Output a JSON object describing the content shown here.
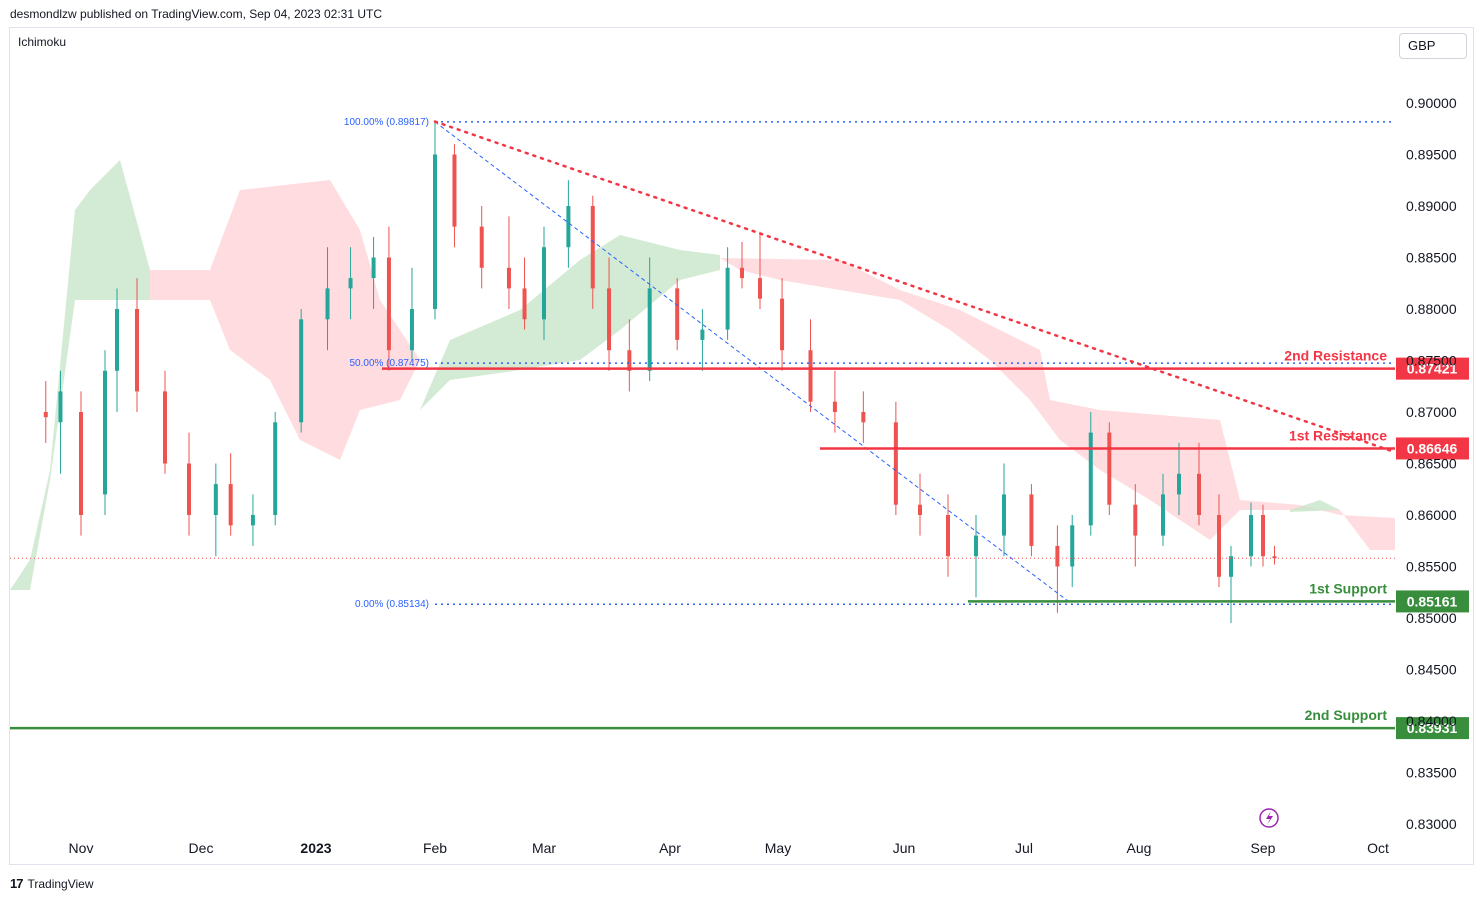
{
  "header": {
    "publisher": "desmondlzw published on TradingView.com, Sep 04, 2023 02:31 UTC"
  },
  "indicator_label": "Ichimoku",
  "currency": "GBP",
  "footer": {
    "brand": "TradingView",
    "logo": "17"
  },
  "icons": {
    "lightning": "lightning-icon"
  },
  "colors": {
    "up": "#26a69a",
    "down": "#ef5350",
    "resistance": "#f23645",
    "support": "#388e3c",
    "fib": "#2962ff",
    "cloud_bull": "#c8e6c9",
    "cloud_bear": "#ffcdd2",
    "trendline": "#f23645"
  },
  "chart_data": {
    "type": "candlestick",
    "instrument_currency": "GBP",
    "ylim": [
      0.828,
      0.904
    ],
    "y_ticks": [
      "0.90000",
      "0.89500",
      "0.89000",
      "0.88500",
      "0.88000",
      "0.87500",
      "0.87000",
      "0.86500",
      "0.86000",
      "0.85500",
      "0.85000",
      "0.84500",
      "0.84000",
      "0.83500",
      "0.83000"
    ],
    "x_ticks": [
      "Nov",
      "Dec",
      "2023",
      "Feb",
      "Mar",
      "Apr",
      "May",
      "Jun",
      "Jul",
      "Aug",
      "Sep",
      "Oct"
    ],
    "fibonacci": [
      {
        "label": "100.00% (0.89817)",
        "value": 0.89817
      },
      {
        "label": "50.00% (0.87475)",
        "value": 0.87475
      },
      {
        "label": "0.00% (0.85134)",
        "value": 0.85134
      }
    ],
    "levels": [
      {
        "name": "2nd Resistance",
        "value": 0.87421,
        "price_label": "0.87421",
        "kind": "resistance"
      },
      {
        "name": "1st Resistance",
        "value": 0.86646,
        "price_label": "0.86646",
        "kind": "resistance"
      },
      {
        "name": "1st Support",
        "value": 0.85161,
        "price_label": "0.85161",
        "kind": "support"
      },
      {
        "name": "2nd Support",
        "value": 0.83931,
        "price_label": "0.83931",
        "kind": "support"
      }
    ],
    "descending_trendline": {
      "from": [
        "2023-02-01",
        0.8982
      ],
      "to": [
        "2023-09-04",
        0.8661
      ]
    },
    "last_price": 0.8558,
    "candles": [
      [
        "2022-10-20",
        0.87,
        0.873,
        0.867,
        0.8695
      ],
      [
        "2022-10-25",
        0.869,
        0.874,
        0.864,
        0.872
      ],
      [
        "2022-11-01",
        0.87,
        0.872,
        0.858,
        0.86
      ],
      [
        "2022-11-07",
        0.862,
        0.876,
        0.86,
        0.874
      ],
      [
        "2022-11-10",
        0.874,
        0.882,
        0.87,
        0.88
      ],
      [
        "2022-11-15",
        0.88,
        0.883,
        0.87,
        0.872
      ],
      [
        "2022-11-22",
        0.872,
        0.874,
        0.864,
        0.865
      ],
      [
        "2022-11-28",
        0.865,
        0.868,
        0.858,
        0.86
      ],
      [
        "2022-12-05",
        0.86,
        0.865,
        0.856,
        0.863
      ],
      [
        "2022-12-09",
        0.863,
        0.866,
        0.858,
        0.859
      ],
      [
        "2022-12-15",
        0.859,
        0.862,
        0.857,
        0.86
      ],
      [
        "2022-12-21",
        0.86,
        0.87,
        0.859,
        0.869
      ],
      [
        "2022-12-28",
        0.869,
        0.88,
        0.868,
        0.879
      ],
      [
        "2023-01-04",
        0.879,
        0.886,
        0.876,
        0.882
      ],
      [
        "2023-01-10",
        0.882,
        0.886,
        0.879,
        0.883
      ],
      [
        "2023-01-16",
        0.883,
        0.887,
        0.88,
        0.885
      ],
      [
        "2023-01-20",
        0.885,
        0.888,
        0.874,
        0.876
      ],
      [
        "2023-01-26",
        0.876,
        0.884,
        0.875,
        0.88
      ],
      [
        "2023-02-01",
        0.88,
        0.8982,
        0.879,
        0.895
      ],
      [
        "2023-02-06",
        0.895,
        0.896,
        0.886,
        0.888
      ],
      [
        "2023-02-13",
        0.888,
        0.89,
        0.882,
        0.884
      ],
      [
        "2023-02-20",
        0.884,
        0.889,
        0.88,
        0.882
      ],
      [
        "2023-02-24",
        0.882,
        0.885,
        0.878,
        0.879
      ],
      [
        "2023-03-01",
        0.879,
        0.888,
        0.877,
        0.886
      ],
      [
        "2023-03-07",
        0.886,
        0.8925,
        0.884,
        0.89
      ],
      [
        "2023-03-13",
        0.89,
        0.891,
        0.88,
        0.882
      ],
      [
        "2023-03-17",
        0.882,
        0.885,
        0.874,
        0.876
      ],
      [
        "2023-03-22",
        0.876,
        0.879,
        0.872,
        0.874
      ],
      [
        "2023-03-27",
        0.874,
        0.885,
        0.873,
        0.882
      ],
      [
        "2023-04-03",
        0.882,
        0.883,
        0.876,
        0.877
      ],
      [
        "2023-04-10",
        0.877,
        0.88,
        0.874,
        0.878
      ],
      [
        "2023-04-17",
        0.878,
        0.886,
        0.877,
        0.884
      ],
      [
        "2023-04-21",
        0.884,
        0.8865,
        0.882,
        0.883
      ],
      [
        "2023-04-26",
        0.883,
        0.8875,
        0.88,
        0.881
      ],
      [
        "2023-05-02",
        0.881,
        0.883,
        0.874,
        0.876
      ],
      [
        "2023-05-09",
        0.876,
        0.879,
        0.87,
        0.871
      ],
      [
        "2023-05-15",
        0.871,
        0.874,
        0.868,
        0.87
      ],
      [
        "2023-05-22",
        0.87,
        0.872,
        0.867,
        0.869
      ],
      [
        "2023-05-30",
        0.869,
        0.871,
        0.86,
        0.861
      ],
      [
        "2023-06-05",
        0.861,
        0.864,
        0.858,
        0.86
      ],
      [
        "2023-06-12",
        0.86,
        0.862,
        0.854,
        0.856
      ],
      [
        "2023-06-19",
        0.856,
        0.86,
        0.852,
        0.858
      ],
      [
        "2023-06-26",
        0.858,
        0.865,
        0.856,
        0.862
      ],
      [
        "2023-07-03",
        0.862,
        0.863,
        0.856,
        0.857
      ],
      [
        "2023-07-10",
        0.857,
        0.859,
        0.8505,
        0.855
      ],
      [
        "2023-07-14",
        0.855,
        0.86,
        0.853,
        0.859
      ],
      [
        "2023-07-19",
        0.859,
        0.87,
        0.858,
        0.868
      ],
      [
        "2023-07-24",
        0.868,
        0.869,
        0.86,
        0.861
      ],
      [
        "2023-07-31",
        0.861,
        0.863,
        0.855,
        0.858
      ],
      [
        "2023-08-07",
        0.858,
        0.864,
        0.857,
        0.862
      ],
      [
        "2023-08-11",
        0.862,
        0.867,
        0.86,
        0.864
      ],
      [
        "2023-08-16",
        0.864,
        0.867,
        0.859,
        0.86
      ],
      [
        "2023-08-21",
        0.86,
        0.862,
        0.853,
        0.854
      ],
      [
        "2023-08-24",
        0.854,
        0.857,
        0.8495,
        0.856
      ],
      [
        "2023-08-29",
        0.856,
        0.8612,
        0.855,
        0.86
      ],
      [
        "2023-09-01",
        0.86,
        0.861,
        0.855,
        0.856
      ],
      [
        "2023-09-04",
        0.856,
        0.857,
        0.8552,
        0.8558
      ]
    ]
  }
}
